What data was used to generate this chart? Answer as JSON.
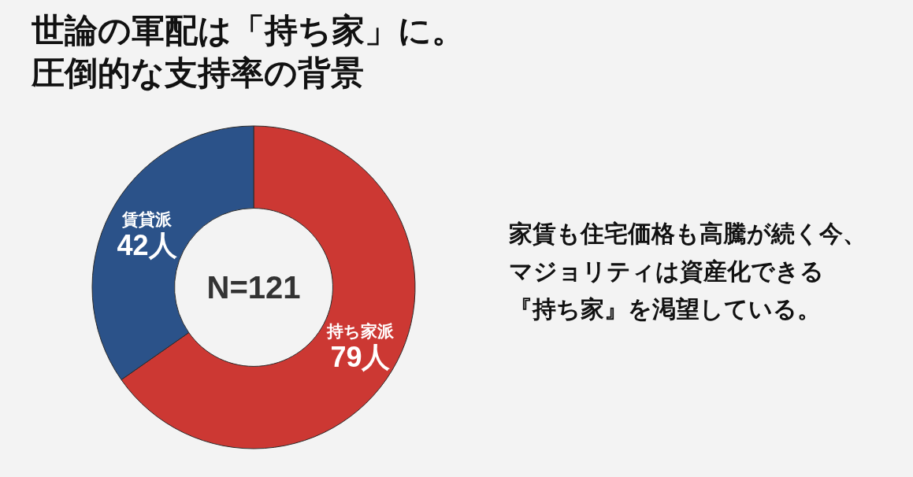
{
  "chart_data": {
    "type": "donut",
    "title": "世論の軍配は「持ち家」に。圧倒的な支持率の背景",
    "categories": [
      "持ち家派",
      "賃貸派"
    ],
    "values": [
      79,
      42
    ],
    "colors": [
      "#cc3833",
      "#2b5289"
    ],
    "value_labels": [
      "79人",
      "42人"
    ],
    "annotations": [
      "N=121",
      "家賃も住宅価格も高騰が続く今、",
      "マジョリティは資産化できる",
      "『持ち家』を渇望している。"
    ]
  }
}
